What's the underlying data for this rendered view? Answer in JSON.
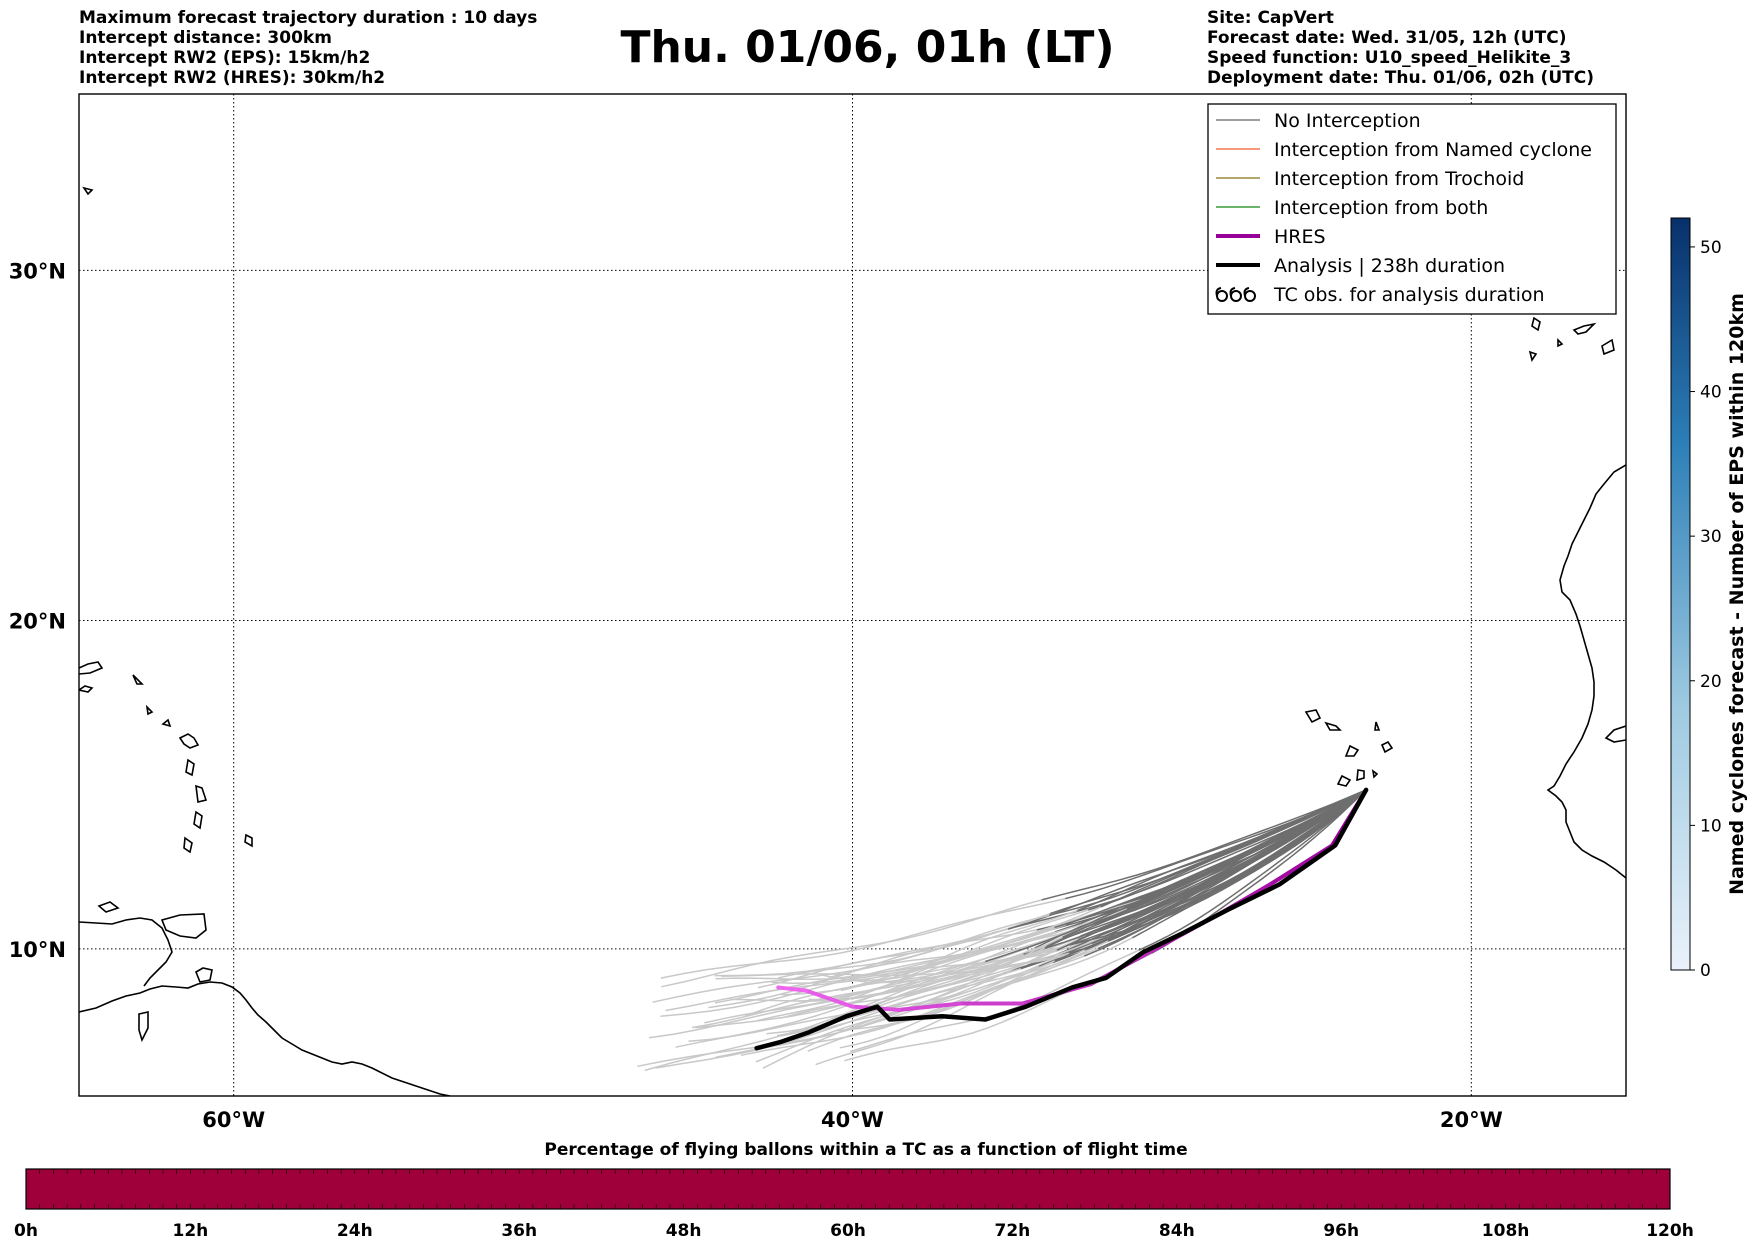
{
  "header_left": [
    "Maximum forecast trajectory duration : 10 days",
    "Intercept distance: 300km",
    "Intercept RW2 (EPS):  15km/h2",
    "Intercept RW2 (HRES): 30km/h2"
  ],
  "title": "Thu. 01/06, 01h (LT)",
  "header_right": [
    "Site: CapVert",
    "Forecast date: Wed. 31/05, 12h (UTC)",
    "Speed function: U10_speed_Helikite_3",
    "Deployment date: Thu. 01/06, 02h (UTC)"
  ],
  "map": {
    "lat_labels": [
      "30°N",
      "20°N",
      "10°N"
    ],
    "lon_labels": [
      "60°W",
      "40°W",
      "20°W"
    ],
    "lat_gridlines": [
      30,
      20,
      10
    ],
    "lon_gridlines": [
      -60,
      -40,
      -20
    ],
    "extent": {
      "lon": [
        -65,
        -15
      ],
      "lat": [
        5.4,
        34.7
      ]
    }
  },
  "legend": {
    "items": [
      {
        "label": "No Interception",
        "color": "#7f7f7f",
        "kind": "thin"
      },
      {
        "label": "Interception from Named cyclone",
        "color": "#f4764d",
        "kind": "thin"
      },
      {
        "label": "Interception from Trochoid",
        "color": "#9a8a3a",
        "kind": "thin"
      },
      {
        "label": "Interception from both",
        "color": "#3b9a3b",
        "kind": "thin"
      },
      {
        "label": "HRES",
        "color": "#990099",
        "kind": "thick"
      },
      {
        "label": "Analysis | 238h duration",
        "color": "#000000",
        "kind": "thick"
      },
      {
        "label": "TC obs. for analysis duration",
        "color": "#000000",
        "kind": "tc-symbol"
      }
    ]
  },
  "trajectories": {
    "hres": {
      "color_start": "#990099",
      "color_end": "#ee66ee",
      "points": [
        [
          -23.4,
          14.9
        ],
        [
          -24.5,
          13.2
        ],
        [
          -26.5,
          12
        ],
        [
          -28.3,
          11
        ],
        [
          -30.2,
          10
        ],
        [
          -32.3,
          8.9
        ],
        [
          -34.5,
          8.3
        ],
        [
          -36.5,
          8.3
        ],
        [
          -38.5,
          8.1
        ],
        [
          -40,
          8.2
        ],
        [
          -41.5,
          8.7
        ],
        [
          -42.4,
          8.8
        ]
      ]
    },
    "analysis": {
      "color": "#000000",
      "points": [
        [
          -23.4,
          14.9
        ],
        [
          -24.4,
          13.2
        ],
        [
          -26.2,
          12
        ],
        [
          -27.9,
          11.2
        ],
        [
          -29.3,
          10.5
        ],
        [
          -30.6,
          9.9
        ],
        [
          -31.8,
          9.1
        ],
        [
          -32.9,
          8.8
        ],
        [
          -34.4,
          8.2
        ],
        [
          -35.7,
          7.8
        ],
        [
          -37.1,
          7.9
        ],
        [
          -38.8,
          7.8
        ],
        [
          -39.2,
          8.2
        ],
        [
          -40.2,
          7.9
        ],
        [
          -41.4,
          7.4
        ],
        [
          -42.3,
          7.1
        ],
        [
          -43.1,
          6.9
        ]
      ]
    }
  },
  "colorbar_right": {
    "title": "Named cyclones forecast - Number of EPS within 120km",
    "ticks": [
      0,
      10,
      20,
      30,
      40,
      50
    ],
    "max": 52,
    "color_low": "#eaf2fb",
    "color_high": "#08306b"
  },
  "colorbar_bottom": {
    "title": "Percentage of flying ballons within a TC as a function of flight time",
    "ticks": [
      "0h",
      "12h",
      "24h",
      "36h",
      "48h",
      "60h",
      "72h",
      "84h",
      "96h",
      "108h",
      "120h"
    ],
    "fill_color": "#a0003a",
    "fill_fraction": 1.0
  }
}
